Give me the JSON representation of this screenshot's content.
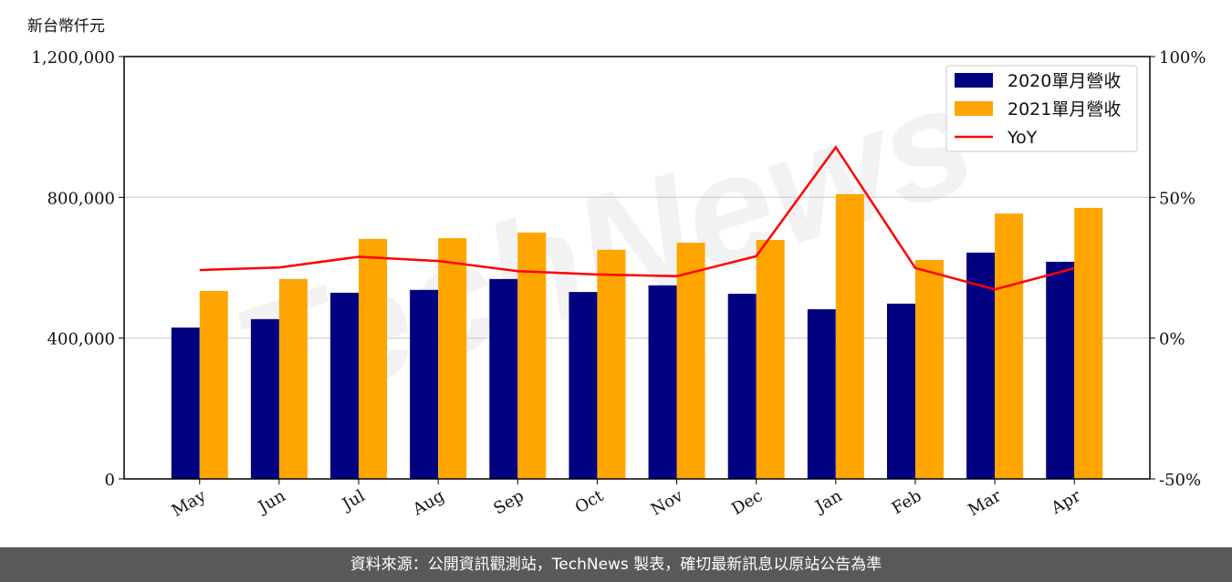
{
  "unit_label": "新台幣仟元",
  "footer": "資料來源：公開資訊觀測站，TechNews 製表，確切最新訊息以原站公告為準",
  "watermark": "TechNews",
  "chart_data": {
    "type": "bar",
    "categories": [
      "May",
      "Jun",
      "Jul",
      "Aug",
      "Sep",
      "Oct",
      "Nov",
      "Dec",
      "Jan",
      "Feb",
      "Mar",
      "Apr"
    ],
    "series": [
      {
        "name": "2020單月營收",
        "type": "bar",
        "axis": "left",
        "color": "#000080",
        "values": [
          430000,
          454000,
          529000,
          537000,
          568000,
          531000,
          550000,
          526000,
          482000,
          498000,
          643000,
          617000
        ]
      },
      {
        "name": "2021單月營收",
        "type": "bar",
        "axis": "left",
        "color": "#FFA500",
        "values": [
          534000,
          568000,
          682000,
          684000,
          700000,
          651000,
          671000,
          679000,
          809000,
          622000,
          754000,
          770000
        ]
      },
      {
        "name": "YoY",
        "type": "line",
        "axis": "right",
        "color": "#FF0000",
        "values": [
          24.2,
          25.1,
          28.9,
          27.4,
          23.8,
          22.6,
          22.0,
          29.1,
          67.8,
          24.9,
          17.3,
          24.8
        ]
      }
    ],
    "y_left": {
      "range": [
        0,
        1200000
      ],
      "ticks": [
        "0",
        "400,000",
        "800,000",
        "1,200,000"
      ],
      "tick_values": [
        0,
        400000,
        800000,
        1200000
      ]
    },
    "y_right": {
      "range": [
        -50,
        100
      ],
      "ticks": [
        "-50%",
        "0%",
        "50%",
        "100%"
      ],
      "tick_values": [
        -50,
        0,
        50,
        100
      ]
    },
    "grid": "horizontal",
    "legend": "top-right"
  }
}
